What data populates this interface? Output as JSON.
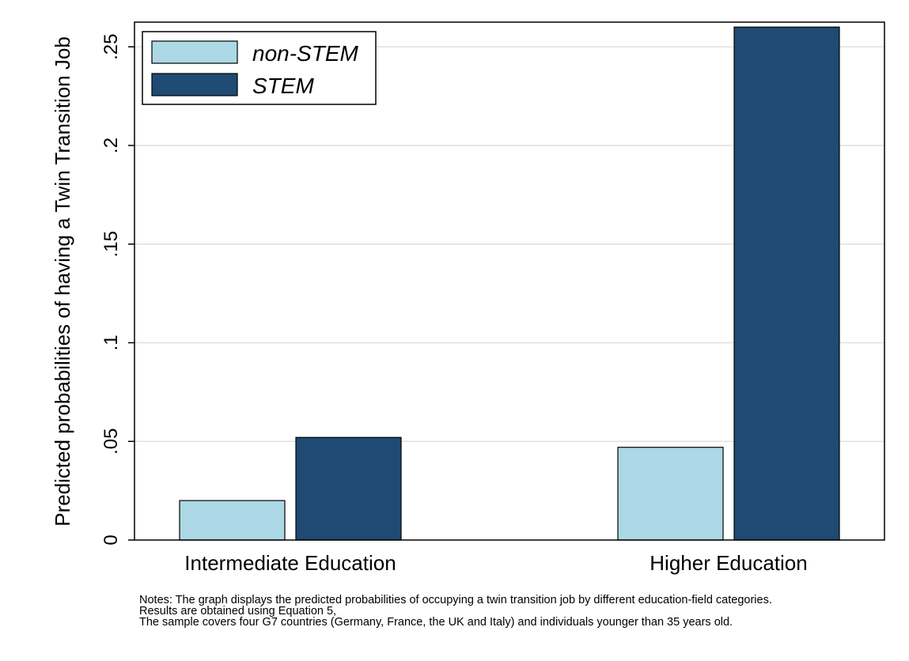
{
  "chart_data": {
    "type": "bar",
    "title": "",
    "xlabel": "",
    "ylabel": "Predicted probabilities of having a Twin Transition Job",
    "categories": [
      "Intermediate Education",
      "Higher Education"
    ],
    "series": [
      {
        "name": "non-STEM",
        "color": "#add8e6",
        "values": [
          0.02,
          0.047
        ]
      },
      {
        "name": "STEM",
        "color": "#1f4a73",
        "values": [
          0.052,
          0.26
        ]
      }
    ],
    "ylim": [
      0,
      0.2625
    ],
    "yticks": [
      0,
      0.05,
      0.1,
      0.15,
      0.2,
      0.25
    ],
    "ytick_labels": [
      "0",
      ".05",
      ".1",
      ".15",
      ".2",
      ".25"
    ],
    "grid": true,
    "legend_position": "top-left"
  },
  "notes": {
    "line1": "Notes: The graph displays the predicted probabilities of occupying a twin transition job by different education-field categories.",
    "line2": "Results are obtained using Equation 5,",
    "line3": "The sample covers four G7 countries (Germany, France, the UK and Italy) and individuals younger than 35 years old."
  }
}
